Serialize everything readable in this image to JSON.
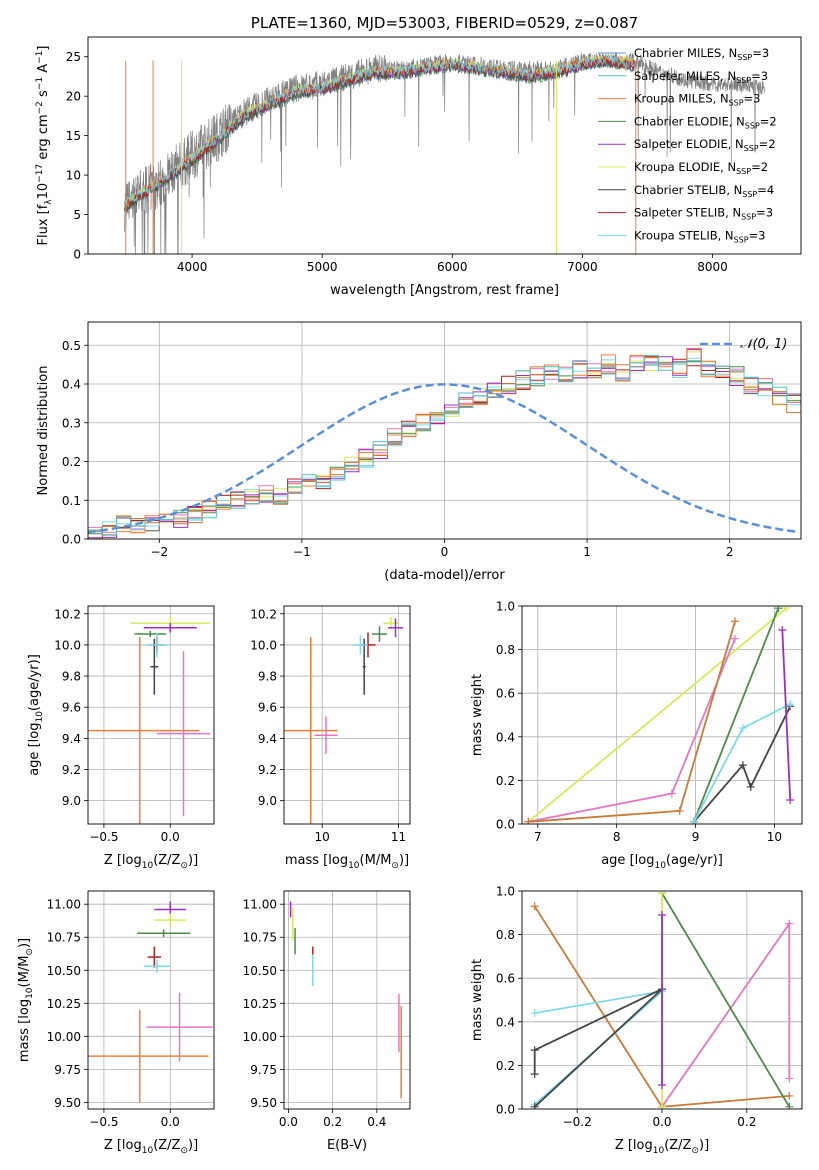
{
  "colors": {
    "chabrier_miles": "#5b8fd6",
    "salpeter_miles": "#55bfc4",
    "kroupa_miles": "#f07f3c",
    "chabrier_elodie": "#4e8a4a",
    "salpeter_elodie": "#9b30c0",
    "kroupa_elodie": "#d8e85a",
    "chabrier_stelib": "#444444",
    "salpeter_stelib": "#b22222",
    "kroupa_stelib": "#80d8e8",
    "pink": "#e377c2",
    "brown": "#c87a3a",
    "gray_spec": "#808080",
    "normal": "#5b8fd6",
    "grid": "#b0b0b0"
  },
  "chart_data": [
    {
      "id": "spectrum",
      "type": "line",
      "title": "PLATE=1360, MJD=53003, FIBERID=0529, z=0.087",
      "xlabel": "wavelength [Angstrom, rest frame]",
      "ylabel_parts": [
        "Flux [f",
        "λ",
        "10",
        "−17",
        " erg cm",
        "−2",
        " s",
        "−1",
        " A",
        "−1",
        "]"
      ],
      "xlim": [
        3200,
        8680
      ],
      "ylim": [
        0,
        27.5
      ],
      "xticks": [
        4000,
        5000,
        6000,
        7000,
        8000
      ],
      "yticks": [
        0,
        5,
        10,
        15,
        20,
        25
      ],
      "grid": false,
      "legend_position": "right",
      "legend": [
        {
          "label": "Chabrier MILES, N",
          "sub": "SSP",
          "tail": "=3",
          "color_key": "chabrier_miles"
        },
        {
          "label": "Salpeter MILES, N",
          "sub": "SSP",
          "tail": "=3",
          "color_key": "salpeter_miles"
        },
        {
          "label": "Kroupa MILES, N",
          "sub": "SSP",
          "tail": "=3",
          "color_key": "kroupa_miles"
        },
        {
          "label": "Chabrier ELODIE, N",
          "sub": "SSP",
          "tail": "=2",
          "color_key": "chabrier_elodie"
        },
        {
          "label": "Salpeter ELODIE, N",
          "sub": "SSP",
          "tail": "=2",
          "color_key": "salpeter_elodie"
        },
        {
          "label": "Kroupa ELODIE, N",
          "sub": "SSP",
          "tail": "=2",
          "color_key": "kroupa_elodie"
        },
        {
          "label": "Chabrier STELIB, N",
          "sub": "SSP",
          "tail": "=4",
          "color_key": "chabrier_stelib"
        },
        {
          "label": "Salpeter STELIB, N",
          "sub": "SSP",
          "tail": "=3",
          "color_key": "salpeter_stelib"
        },
        {
          "label": "Kroupa STELIB, N",
          "sub": "SSP",
          "tail": "=3",
          "color_key": "kroupa_stelib"
        }
      ],
      "data_envelope": {
        "x": [
          3480,
          3600,
          3800,
          4000,
          4200,
          4400,
          4600,
          4800,
          5000,
          5200,
          5400,
          5600,
          5800,
          6000,
          6200,
          6400,
          6600,
          6800,
          7000,
          7200,
          7400,
          7600,
          7800,
          8000,
          8200,
          8400
        ],
        "y": [
          6.0,
          7.5,
          9.5,
          12.5,
          15.0,
          18.0,
          19.5,
          21.0,
          21.5,
          22.5,
          23.5,
          23.5,
          24.0,
          24.5,
          24.0,
          23.5,
          23.5,
          23.5,
          24.5,
          24.5,
          24.5,
          23.0,
          22.0,
          21.5,
          21.5,
          21.0
        ]
      },
      "model_envelope": {
        "x": [
          3480,
          3600,
          3800,
          4000,
          4200,
          4400,
          4600,
          4800,
          5000,
          5200,
          5400,
          5600,
          5800,
          6000,
          6200,
          6400,
          6600,
          6800,
          7000,
          7200,
          7400
        ],
        "y": [
          6.0,
          7.5,
          9.5,
          12.0,
          14.5,
          17.5,
          19.0,
          20.5,
          21.0,
          22.0,
          23.0,
          23.0,
          23.5,
          24.0,
          23.5,
          23.0,
          22.5,
          23.0,
          24.0,
          24.5,
          24.0
        ]
      },
      "verticals": [
        {
          "x": 3490,
          "color_key": "kroupa_miles"
        },
        {
          "x": 3700,
          "color_key": "kroupa_miles"
        },
        {
          "x": 3920,
          "color_key": "kroupa_elodie"
        },
        {
          "x": 6800,
          "color_key": "kroupa_elodie"
        },
        {
          "x": 7410,
          "color_key": "kroupa_miles"
        }
      ]
    },
    {
      "id": "residuals",
      "type": "line",
      "xlabel": "(data-model)/error",
      "ylabel": "Normed distribution",
      "xlim": [
        -2.5,
        2.5
      ],
      "ylim": [
        0,
        0.56
      ],
      "xticks": [
        -2,
        -1,
        0,
        1,
        2
      ],
      "yticks": [
        0.0,
        0.1,
        0.2,
        0.3,
        0.4,
        0.5
      ],
      "grid": true,
      "legend_position": "top-right",
      "legend_label": "𝒩(0, 1)",
      "bin_width": 0.1,
      "histogram_x_start": -2.5,
      "histogram_values": [
        0.02,
        0.025,
        0.035,
        0.04,
        0.04,
        0.045,
        0.05,
        0.06,
        0.075,
        0.09,
        0.1,
        0.11,
        0.12,
        0.11,
        0.13,
        0.15,
        0.14,
        0.17,
        0.19,
        0.21,
        0.23,
        0.26,
        0.28,
        0.3,
        0.32,
        0.34,
        0.36,
        0.37,
        0.38,
        0.4,
        0.41,
        0.42,
        0.43,
        0.43,
        0.44,
        0.44,
        0.45,
        0.43,
        0.45,
        0.46,
        0.45,
        0.44,
        0.47,
        0.44,
        0.43,
        0.42,
        0.4,
        0.39,
        0.37,
        0.35,
        0.34,
        0.32,
        0.3,
        0.28,
        0.26,
        0.24,
        0.22,
        0.2,
        0.18,
        0.16,
        0.15,
        0.14,
        0.12,
        0.11,
        0.1,
        0.09,
        0.08,
        0.075,
        0.07,
        0.06,
        0.055,
        0.05,
        0.045,
        0.04,
        0.035,
        0.03,
        0.03,
        0.025,
        0.022,
        0.02
      ],
      "normal_curve": {
        "mean": 0,
        "std": 1
      }
    },
    {
      "id": "age_vs_Z",
      "type": "scatter",
      "xlabel_parts": [
        "Z [log",
        "10",
        "(Z/Z",
        "⊙",
        ")]"
      ],
      "ylabel_parts": [
        "age  [log",
        "10",
        "(age/yr)]"
      ],
      "xlim": [
        -0.62,
        0.33
      ],
      "ylim": [
        8.85,
        10.25
      ],
      "xticks": [
        -0.5,
        0.0
      ],
      "yticks": [
        9.0,
        9.2,
        9.4,
        9.6,
        9.8,
        10.0,
        10.2
      ],
      "grid": true,
      "points": [
        {
          "x": 0.0,
          "y": 10.14,
          "xerr": 0.3,
          "yerr": 0.04,
          "color_key": "kroupa_elodie"
        },
        {
          "x": 0.0,
          "y": 10.11,
          "xerr": 0.2,
          "yerr": 0.03,
          "color_key": "salpeter_elodie"
        },
        {
          "x": -0.15,
          "y": 10.07,
          "xerr": 0.12,
          "yerr": 0.02,
          "color_key": "chabrier_elodie"
        },
        {
          "x": -0.12,
          "y": 9.86,
          "xerr": 0.03,
          "yerr": 0.18,
          "color_key": "chabrier_stelib"
        },
        {
          "x": -0.1,
          "y": 10.0,
          "xerr": 0.05,
          "yerr": 0.05,
          "color_key": "salpeter_stelib"
        },
        {
          "x": -0.1,
          "y": 10.0,
          "xerr": 0.09,
          "yerr": 0.08,
          "color_key": "kroupa_stelib"
        },
        {
          "x": -0.23,
          "y": 9.45,
          "xerr": 0.45,
          "yerr": 0.6,
          "color_key": "kroupa_miles"
        },
        {
          "x": 0.1,
          "y": 9.43,
          "xerr": 0.2,
          "yerr": 0.53,
          "color_key": "pink"
        }
      ]
    },
    {
      "id": "age_vs_mass",
      "type": "scatter",
      "xlabel_parts": [
        "mass [log",
        "10",
        "(M/M",
        "⊙",
        ")]"
      ],
      "xlim": [
        9.5,
        11.15
      ],
      "ylim": [
        8.85,
        10.25
      ],
      "xticks": [
        10,
        11
      ],
      "yticks": [
        9.0,
        9.2,
        9.4,
        9.6,
        9.8,
        10.0,
        10.2
      ],
      "grid": true,
      "points": [
        {
          "x": 10.9,
          "y": 10.14,
          "xerr": 0.1,
          "yerr": 0.04,
          "color_key": "kroupa_elodie"
        },
        {
          "x": 10.96,
          "y": 10.11,
          "xerr": 0.1,
          "yerr": 0.06,
          "color_key": "salpeter_elodie"
        },
        {
          "x": 10.75,
          "y": 10.07,
          "xerr": 0.1,
          "yerr": 0.05,
          "color_key": "chabrier_elodie"
        },
        {
          "x": 10.55,
          "y": 9.86,
          "xerr": 0.02,
          "yerr": 0.18,
          "color_key": "chabrier_stelib"
        },
        {
          "x": 10.6,
          "y": 10.0,
          "xerr": 0.1,
          "yerr": 0.08,
          "color_key": "salpeter_stelib"
        },
        {
          "x": 10.5,
          "y": 10.0,
          "xerr": 0.1,
          "yerr": 0.06,
          "color_key": "kroupa_stelib"
        },
        {
          "x": 9.85,
          "y": 9.45,
          "xerr": 0.35,
          "yerr": 0.6,
          "color_key": "kroupa_miles"
        },
        {
          "x": 10.05,
          "y": 9.42,
          "xerr": 0.15,
          "yerr": 0.12,
          "color_key": "pink"
        }
      ]
    },
    {
      "id": "weight_vs_age",
      "type": "line",
      "xlabel_parts": [
        "age  [log",
        "10",
        "(age/yr)]"
      ],
      "ylabel": "mass weight",
      "xlim": [
        6.8,
        10.35
      ],
      "ylim": [
        0,
        1.0
      ],
      "xticks": [
        7,
        8,
        9,
        10
      ],
      "yticks": [
        0.0,
        0.2,
        0.4,
        0.6,
        0.8,
        1.0
      ],
      "grid": true,
      "series": [
        {
          "color_key": "kroupa_elodie",
          "x": [
            6.88,
            10.15
          ],
          "y": [
            0.01,
            0.99
          ]
        },
        {
          "color_key": "pink",
          "x": [
            6.88,
            8.7,
            9.5
          ],
          "y": [
            0.01,
            0.14,
            0.85
          ]
        },
        {
          "color_key": "brown",
          "x": [
            6.88,
            8.8,
            9.5
          ],
          "y": [
            0.01,
            0.06,
            0.93
          ]
        },
        {
          "color_key": "chabrier_elodie",
          "x": [
            8.98,
            10.05
          ],
          "y": [
            0.01,
            0.99
          ]
        },
        {
          "color_key": "chabrier_stelib",
          "x": [
            8.98,
            9.6,
            9.7,
            10.2
          ],
          "y": [
            0.01,
            0.27,
            0.17,
            0.54
          ]
        },
        {
          "color_key": "kroupa_stelib",
          "x": [
            8.98,
            9.6,
            10.2
          ],
          "y": [
            0.01,
            0.44,
            0.55
          ]
        },
        {
          "color_key": "salpeter_elodie",
          "x": [
            10.1,
            10.2
          ],
          "y": [
            0.89,
            0.11
          ]
        }
      ]
    },
    {
      "id": "mass_vs_Z",
      "type": "scatter",
      "xlabel_parts": [
        "Z [log",
        "10",
        "(Z/Z",
        "⊙",
        ")]"
      ],
      "ylabel_parts": [
        "mass [log",
        "10",
        "(M/M",
        "⊙",
        ")]"
      ],
      "xlim": [
        -0.62,
        0.33
      ],
      "ylim": [
        9.45,
        11.1
      ],
      "xticks": [
        -0.5,
        0.0
      ],
      "yticks": [
        9.5,
        9.75,
        10.0,
        10.25,
        10.5,
        10.75,
        11.0
      ],
      "grid": true,
      "points": [
        {
          "x": 0.0,
          "y": 10.96,
          "xerr": 0.12,
          "yerr": 0.06,
          "color_key": "salpeter_elodie"
        },
        {
          "x": 0.0,
          "y": 10.88,
          "xerr": 0.12,
          "yerr": 0.05,
          "color_key": "kroupa_elodie"
        },
        {
          "x": -0.05,
          "y": 10.78,
          "xerr": 0.2,
          "yerr": 0.03,
          "color_key": "chabrier_elodie"
        },
        {
          "x": -0.12,
          "y": 10.6,
          "xerr": 0.05,
          "yerr": 0.08,
          "color_key": "salpeter_stelib"
        },
        {
          "x": -0.1,
          "y": 10.53,
          "xerr": 0.1,
          "yerr": 0.05,
          "color_key": "kroupa_stelib"
        },
        {
          "x": -0.23,
          "y": 9.85,
          "xerr": 0.52,
          "yerr": 0.35,
          "color_key": "kroupa_miles"
        },
        {
          "x": 0.07,
          "y": 10.07,
          "xerr": 0.25,
          "yerr": 0.26,
          "color_key": "pink"
        }
      ]
    },
    {
      "id": "mass_vs_EBV",
      "type": "scatter",
      "xlabel": "E(B-V)",
      "xlim": [
        -0.02,
        0.55
      ],
      "ylim": [
        9.45,
        11.1
      ],
      "xticks": [
        0.0,
        0.2,
        0.4
      ],
      "yticks": [
        9.5,
        9.75,
        10.0,
        10.25,
        10.5,
        10.75,
        11.0
      ],
      "grid": true,
      "points": [
        {
          "x": 0.01,
          "y": 10.96,
          "xerr": 0.0,
          "yerr": 0.06,
          "color_key": "salpeter_elodie"
        },
        {
          "x": 0.02,
          "y": 10.85,
          "xerr": 0.0,
          "yerr": 0.12,
          "color_key": "kroupa_elodie"
        },
        {
          "x": 0.03,
          "y": 10.72,
          "xerr": 0.0,
          "yerr": 0.1,
          "color_key": "chabrier_elodie"
        },
        {
          "x": 0.11,
          "y": 10.6,
          "xerr": 0.0,
          "yerr": 0.08,
          "color_key": "salpeter_stelib"
        },
        {
          "x": 0.11,
          "y": 10.5,
          "xerr": 0.0,
          "yerr": 0.12,
          "color_key": "kroupa_stelib"
        },
        {
          "x": 0.5,
          "y": 10.1,
          "xerr": 0.0,
          "yerr": 0.22,
          "color_key": "pink"
        },
        {
          "x": 0.51,
          "y": 9.88,
          "xerr": 0.0,
          "yerr": 0.35,
          "color_key": "kroupa_miles"
        }
      ]
    },
    {
      "id": "weight_vs_Z",
      "type": "line",
      "xlabel_parts": [
        "Z [log",
        "10",
        "(Z/Z",
        "⊙",
        ")]"
      ],
      "ylabel": "mass weight",
      "xlim": [
        -0.33,
        0.33
      ],
      "ylim": [
        0,
        1.0
      ],
      "xticks": [
        -0.2,
        0.0,
        0.2
      ],
      "yticks": [
        0.0,
        0.2,
        0.4,
        0.6,
        0.8,
        1.0
      ],
      "grid": true,
      "series": [
        {
          "color_key": "brown",
          "x": [
            -0.3,
            0.0,
            0.3
          ],
          "y": [
            0.93,
            0.01,
            0.06
          ]
        },
        {
          "color_key": "pink",
          "x": [
            0.0,
            0.3,
            0.3
          ],
          "y": [
            0.01,
            0.85,
            0.14
          ]
        },
        {
          "color_key": "chabrier_elodie",
          "x": [
            0.0,
            0.3
          ],
          "y": [
            0.99,
            0.01
          ]
        },
        {
          "color_key": "kroupa_elodie",
          "x": [
            0.0,
            0.0
          ],
          "y": [
            0.01,
            0.99
          ]
        },
        {
          "color_key": "kroupa_stelib",
          "x": [
            -0.3,
            0.0,
            -0.3
          ],
          "y": [
            0.02,
            0.54,
            0.44
          ]
        },
        {
          "color_key": "chabrier_stelib",
          "x": [
            -0.3,
            0.0,
            -0.3,
            -0.3
          ],
          "y": [
            0.01,
            0.55,
            0.27,
            0.16
          ]
        },
        {
          "color_key": "salpeter_elodie",
          "x": [
            0.0,
            0.0
          ],
          "y": [
            0.89,
            0.11
          ]
        }
      ]
    }
  ]
}
